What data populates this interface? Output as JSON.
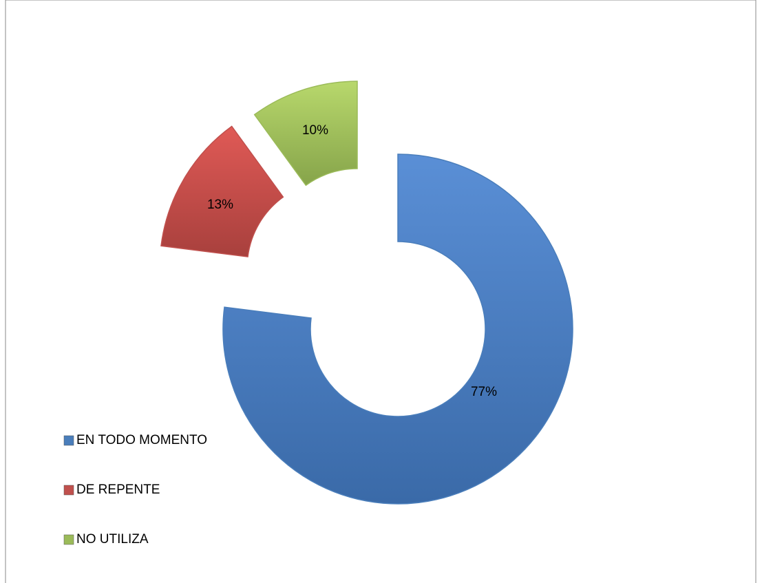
{
  "chart_data": {
    "type": "donut",
    "categories": [
      "EN TODO MOMENTO",
      "DE REPENTE",
      "NO UTILIZA"
    ],
    "values": [
      77,
      13,
      10
    ],
    "value_labels": [
      "77%",
      "13%",
      "10%"
    ],
    "colors": [
      "#4a7ebb",
      "#c0504d",
      "#9bbb59"
    ],
    "legend": "left"
  }
}
